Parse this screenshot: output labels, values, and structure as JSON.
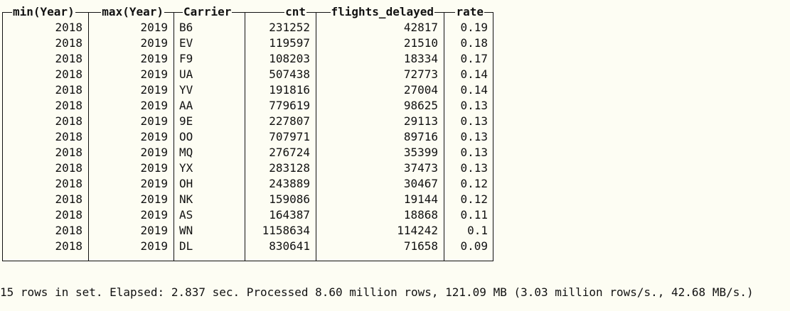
{
  "table": {
    "columns": [
      "min(Year)",
      "max(Year)",
      "Carrier",
      "cnt",
      "flights_delayed",
      "rate"
    ],
    "rows": [
      [
        "2018",
        "2019",
        "B6",
        "231252",
        "42817",
        "0.19"
      ],
      [
        "2018",
        "2019",
        "EV",
        "119597",
        "21510",
        "0.18"
      ],
      [
        "2018",
        "2019",
        "F9",
        "108203",
        "18334",
        "0.17"
      ],
      [
        "2018",
        "2019",
        "UA",
        "507438",
        "72773",
        "0.14"
      ],
      [
        "2018",
        "2019",
        "YV",
        "191816",
        "27004",
        "0.14"
      ],
      [
        "2018",
        "2019",
        "AA",
        "779619",
        "98625",
        "0.13"
      ],
      [
        "2018",
        "2019",
        "9E",
        "227807",
        "29113",
        "0.13"
      ],
      [
        "2018",
        "2019",
        "OO",
        "707971",
        "89716",
        "0.13"
      ],
      [
        "2018",
        "2019",
        "MQ",
        "276724",
        "35399",
        "0.13"
      ],
      [
        "2018",
        "2019",
        "YX",
        "283128",
        "37473",
        "0.13"
      ],
      [
        "2018",
        "2019",
        "OH",
        "243889",
        "30467",
        "0.12"
      ],
      [
        "2018",
        "2019",
        "NK",
        "159086",
        "19144",
        "0.12"
      ],
      [
        "2018",
        "2019",
        "AS",
        "164387",
        "18868",
        "0.11"
      ],
      [
        "2018",
        "2019",
        "WN",
        "1158634",
        "114242",
        "0.1"
      ],
      [
        "2018",
        "2019",
        "DL",
        "830641",
        "71658",
        "0.09"
      ]
    ]
  },
  "footer": {
    "status": "15 rows in set. Elapsed: 2.837 sec. Processed 8.60 million rows, 121.09 MB (3.03 million rows/s., 42.68 MB/s.)"
  }
}
